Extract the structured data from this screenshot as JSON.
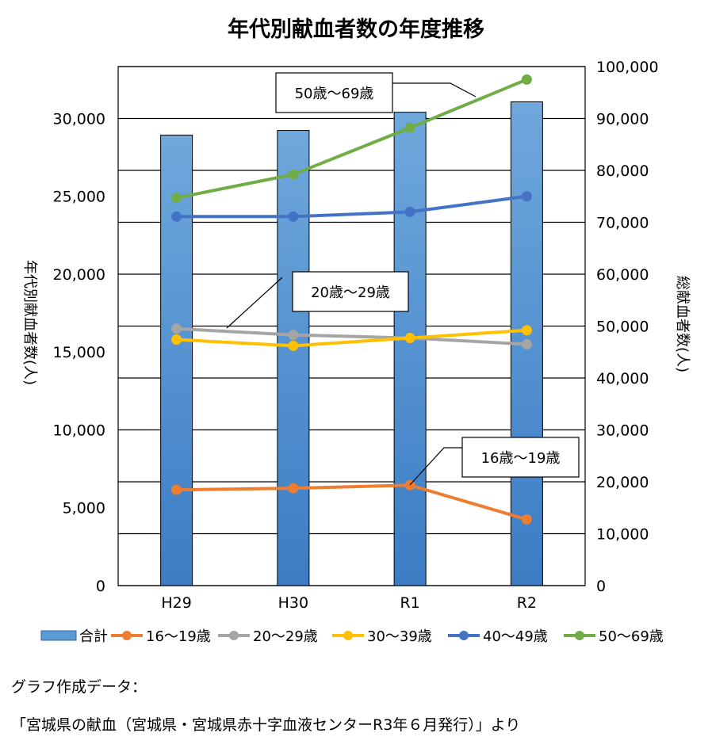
{
  "chart_data": {
    "type": "bar",
    "title": "年代別献血者数の年度推移",
    "categories": [
      "H29",
      "H30",
      "R1",
      "R2"
    ],
    "left_axis": {
      "label": "年代別献血者数(人)",
      "range": [
        0,
        33333
      ],
      "ticks": [
        "0",
        "5,000",
        "10,000",
        "15,000",
        "20,000",
        "25,000",
        "30,000"
      ]
    },
    "right_axis": {
      "label": "総献血者数(人)",
      "range": [
        0,
        100000
      ],
      "ticks": [
        "0",
        "10,000",
        "20,000",
        "30,000",
        "40,000",
        "50,000",
        "60,000",
        "70,000",
        "80,000",
        "90,000",
        "100,000"
      ]
    },
    "bar_series": {
      "name": "合計",
      "axis": "right",
      "color": "#5b9bd5",
      "values": [
        86800,
        87700,
        91200,
        93200
      ]
    },
    "line_series": [
      {
        "name": "16～19歳",
        "color": "#ed7d31",
        "values": [
          6150,
          6250,
          6450,
          4250
        ]
      },
      {
        "name": "20～29歳",
        "color": "#a5a5a5",
        "values": [
          16500,
          16100,
          15900,
          15500
        ]
      },
      {
        "name": "30～39歳",
        "color": "#ffc000",
        "values": [
          15800,
          15400,
          15900,
          16400
        ]
      },
      {
        "name": "40～49歳",
        "color": "#4472c4",
        "values": [
          23700,
          23700,
          24000,
          25000
        ]
      },
      {
        "name": "50～69歳",
        "color": "#70ad47",
        "values": [
          24900,
          26400,
          29400,
          32500
        ]
      }
    ],
    "callouts": [
      {
        "text": "50歳～69歳",
        "series": 4
      },
      {
        "text": "20歳～29歳",
        "series": 1
      },
      {
        "text": "16歳～19歳",
        "series": 0
      }
    ],
    "grid": true,
    "legend_position": "bottom"
  },
  "source": {
    "line1": "グラフ作成データ：",
    "line2": "「宮城県の献血（宮城県・宮城県赤十字血液センターR3年６月発行）」より"
  }
}
